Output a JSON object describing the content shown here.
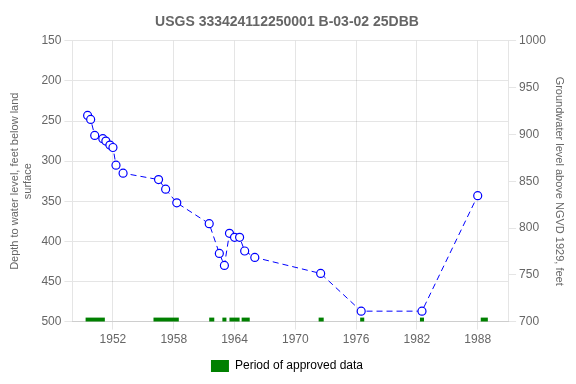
{
  "chart_data": {
    "type": "line",
    "title": "USGS 333424112250001 B-03-02 25DBB",
    "ylabel": "Depth to water level, feet below land\nsurface",
    "y2label": "Groundwater level above NGVD 1929, feet",
    "x": [
      1949.5,
      1949.8,
      1950.2,
      1951.0,
      1951.3,
      1951.7,
      1952.0,
      1952.3,
      1953.0,
      1956.5,
      1957.2,
      1958.3,
      1961.5,
      1962.5,
      1963.0,
      1963.5,
      1964.0,
      1964.5,
      1965.0,
      1966.0,
      1972.5,
      1976.5,
      1982.5,
      1988.0
    ],
    "series": [
      {
        "color": "#0000ff",
        "marker": "circle",
        "line_style": "dashed",
        "values": [
          243,
          248,
          268,
          272,
          275,
          280,
          283,
          305,
          315,
          323,
          335,
          352,
          378,
          415,
          430,
          390,
          395,
          395,
          412,
          420,
          440,
          487,
          487,
          343
        ]
      }
    ],
    "xlim": [
      1948,
      1991
    ],
    "xticks": [
      1952,
      1958,
      1964,
      1970,
      1976,
      1982,
      1988
    ],
    "ylim": [
      500,
      150
    ],
    "yticks": [
      150,
      200,
      250,
      300,
      350,
      400,
      450,
      500
    ],
    "y2lim": [
      700,
      1000
    ],
    "y2ticks": [
      700,
      750,
      800,
      850,
      900,
      950,
      1000
    ],
    "grid": true,
    "legend": "bottom",
    "approved_periods": {
      "name": "Period of approved data",
      "color": "#008000",
      "y": 500,
      "periods": [
        [
          1949.3,
          1951.2
        ],
        [
          1956.0,
          1958.5
        ],
        [
          1961.5,
          1962.0
        ],
        [
          1962.8,
          1963.2
        ],
        [
          1963.5,
          1964.5
        ],
        [
          1964.7,
          1965.5
        ],
        [
          1972.3,
          1972.8
        ],
        [
          1976.4,
          1976.8
        ],
        [
          1982.3,
          1982.7
        ],
        [
          1988.3,
          1989.0
        ]
      ]
    }
  }
}
